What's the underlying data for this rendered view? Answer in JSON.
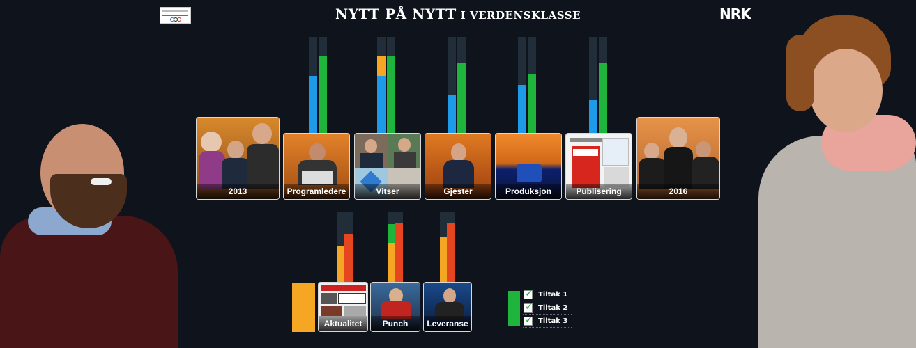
{
  "header": {
    "title_main": "NYTT PÅ NYTT",
    "title_sub": "I VERDENSKLASSE",
    "brand_logo": "NRK"
  },
  "colors": {
    "background": "#0f141c",
    "blue": "#1e9be8",
    "green": "#1fb53c",
    "orange": "#f5a623",
    "red": "#e5451f",
    "bar_track": "#222d3a"
  },
  "top_cards": [
    {
      "label": "2013"
    },
    {
      "label": "Programledere"
    },
    {
      "label": "Vitser"
    },
    {
      "label": "Gjester"
    },
    {
      "label": "Produksjon"
    },
    {
      "label": "Publisering"
    },
    {
      "label": "2016"
    }
  ],
  "bottom_cards": [
    {
      "label": "Aktualitet"
    },
    {
      "label": "Punch"
    },
    {
      "label": "Leveranse"
    }
  ],
  "bar_levels": {
    "Programledere": {
      "left": 0.59,
      "right": 0.79
    },
    "Vitser": {
      "left": 0.59,
      "left_top_segment": 0.21,
      "right": 0.79
    },
    "Gjester": {
      "left": 0.4,
      "right": 0.74
    },
    "Produksjon": {
      "left": 0.5,
      "right": 0.61
    },
    "Publisering": {
      "left": 0.34,
      "right": 0.74
    },
    "Aktualitet": {
      "left": 0.51,
      "right": 0.69
    },
    "Punch": {
      "left": 0.73,
      "left_top_segment": 0.26,
      "right": 0.85
    },
    "Leveranse": {
      "left": 0.64,
      "right": 0.85
    }
  },
  "legend": [
    {
      "label": "Tiltak 1"
    },
    {
      "label": "Tiltak 2"
    },
    {
      "label": "Tiltak 3"
    }
  ]
}
